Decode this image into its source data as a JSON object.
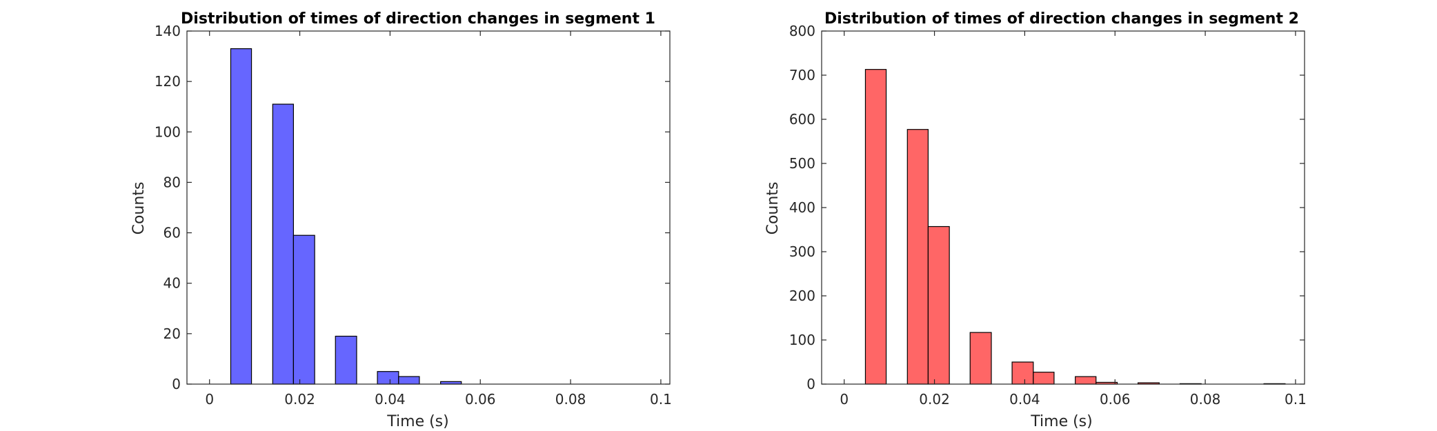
{
  "chart_data": [
    {
      "type": "bar",
      "title": "Distribution of times of direction changes in segment 1",
      "xlabel": "Time (s)",
      "ylabel": "Counts",
      "xlim": [
        -0.005,
        0.102
      ],
      "ylim": [
        0,
        140
      ],
      "xticks": [
        0,
        0.02,
        0.04,
        0.06,
        0.08,
        0.1
      ],
      "xtick_labels": [
        "0",
        "0.02",
        "0.04",
        "0.06",
        "0.08",
        "0.1"
      ],
      "yticks": [
        0,
        20,
        40,
        60,
        80,
        100,
        120,
        140
      ],
      "ytick_labels": [
        "0",
        "20",
        "40",
        "60",
        "80",
        "100",
        "120",
        "140"
      ],
      "bar_color": "#6666ff",
      "bin_edges": [
        0.0047,
        0.0093,
        0.014,
        0.0186,
        0.0233,
        0.0279,
        0.0326,
        0.0372,
        0.0419,
        0.0465,
        0.0512,
        0.0558
      ],
      "values": [
        133,
        0,
        111,
        59,
        0,
        19,
        0,
        5,
        3,
        0,
        1
      ],
      "grid": false
    },
    {
      "type": "bar",
      "title": "Distribution of times of direction changes in segment 2",
      "xlabel": "Time (s)",
      "ylabel": "Counts",
      "xlim": [
        -0.005,
        0.102
      ],
      "ylim": [
        0,
        800
      ],
      "xticks": [
        0,
        0.02,
        0.04,
        0.06,
        0.08,
        0.1
      ],
      "xtick_labels": [
        "0",
        "0.02",
        "0.04",
        "0.06",
        "0.08",
        "0.1"
      ],
      "yticks": [
        0,
        100,
        200,
        300,
        400,
        500,
        600,
        700,
        800
      ],
      "ytick_labels": [
        "0",
        "100",
        "200",
        "300",
        "400",
        "500",
        "600",
        "700",
        "800"
      ],
      "bar_color": "#ff6666",
      "bin_edges": [
        0.0047,
        0.0093,
        0.014,
        0.0186,
        0.0233,
        0.0279,
        0.0326,
        0.0372,
        0.0419,
        0.0465,
        0.0512,
        0.0558,
        0.0605,
        0.0651,
        0.0698,
        0.0744,
        0.0791,
        0.0837,
        0.0884,
        0.093,
        0.0977
      ],
      "values": [
        713,
        0,
        577,
        357,
        0,
        117,
        0,
        50,
        27,
        0,
        17,
        4,
        0,
        3,
        0,
        1,
        0,
        0,
        0,
        1
      ],
      "grid": false
    }
  ]
}
